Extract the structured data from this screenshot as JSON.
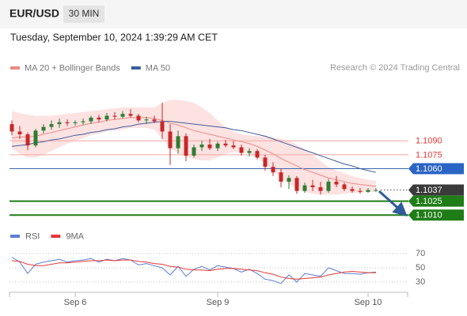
{
  "header": {
    "symbol": "EUR/USD",
    "timeframe": "30 MIN",
    "timestamp": "Tuesday, September 10, 2024 1:39:29 AM CET"
  },
  "chart_data": [
    {
      "type": "candlestick",
      "credit": "Research © 2024 Trading Central",
      "ylim": [
        1.1,
        1.116
      ],
      "up_color": "#2e7d32",
      "down_color": "#c62828",
      "open": [
        1.1108,
        1.11,
        1.1097,
        1.1085,
        1.1101,
        1.1105,
        1.1108,
        1.111,
        1.1109,
        1.111,
        1.1111,
        1.1115,
        1.1113,
        1.1117,
        1.1116,
        1.1119,
        1.1117,
        1.1112,
        1.1113,
        1.1111,
        1.11,
        1.1082,
        1.1095,
        1.1074,
        1.1083,
        1.1086,
        1.1082,
        1.1087,
        1.1085,
        1.1083,
        1.1077,
        1.1079,
        1.1072,
        1.1062,
        1.1056,
        1.1046,
        1.105,
        1.1036,
        1.1042,
        1.104,
        1.1036,
        1.1046,
        1.1043,
        1.1038,
        1.1036,
        1.1035,
        1.1037
      ],
      "high": [
        1.1112,
        1.1106,
        1.1099,
        1.1103,
        1.1108,
        1.1112,
        1.1114,
        1.1113,
        1.1112,
        1.1114,
        1.1117,
        1.1118,
        1.112,
        1.1121,
        1.1122,
        1.1124,
        1.1119,
        1.1116,
        1.1117,
        1.1131,
        1.1108,
        1.1101,
        1.1098,
        1.1086,
        1.109,
        1.1092,
        1.1089,
        1.1091,
        1.109,
        1.1086,
        1.1082,
        1.1081,
        1.1075,
        1.1067,
        1.106,
        1.1053,
        1.1052,
        1.1045,
        1.1048,
        1.1046,
        1.1049,
        1.1052,
        1.1045,
        1.1041,
        1.1039,
        1.1039,
        1.1039
      ],
      "low": [
        1.1096,
        1.1092,
        1.108,
        1.1083,
        1.1098,
        1.1102,
        1.1104,
        1.1106,
        1.1106,
        1.1107,
        1.1108,
        1.111,
        1.1111,
        1.1113,
        1.1114,
        1.1115,
        1.111,
        1.1108,
        1.1109,
        1.1092,
        1.1064,
        1.1076,
        1.1068,
        1.1072,
        1.1079,
        1.108,
        1.1079,
        1.1083,
        1.1081,
        1.1074,
        1.1073,
        1.107,
        1.1058,
        1.1052,
        1.104,
        1.1038,
        1.1033,
        1.1034,
        1.1036,
        1.1032,
        1.1034,
        1.104,
        1.1036,
        1.1034,
        1.1033,
        1.1034,
        1.1035
      ],
      "close": [
        1.11,
        1.1097,
        1.1085,
        1.1101,
        1.1105,
        1.1108,
        1.111,
        1.1109,
        1.111,
        1.1111,
        1.1115,
        1.1113,
        1.1117,
        1.1116,
        1.1119,
        1.1117,
        1.1112,
        1.1113,
        1.1111,
        1.11,
        1.1082,
        1.1095,
        1.1074,
        1.1083,
        1.1086,
        1.1082,
        1.1087,
        1.1085,
        1.1083,
        1.1077,
        1.1079,
        1.1072,
        1.1062,
        1.1056,
        1.1046,
        1.105,
        1.1036,
        1.1042,
        1.104,
        1.1036,
        1.1046,
        1.1043,
        1.1038,
        1.1036,
        1.1035,
        1.1037,
        1.1037
      ],
      "lines": [
        {
          "name": "MA 20 + Bollinger Bands",
          "color": "#ea8a83",
          "band_color": "#fde2e2",
          "values": [
            1.1093,
            1.1094,
            1.1094,
            1.1095,
            1.1097,
            1.1099,
            1.1101,
            1.1103,
            1.1105,
            1.1107,
            1.1109,
            1.111,
            1.1112,
            1.1113,
            1.1114,
            1.1115,
            1.1115,
            1.1115,
            1.1114,
            1.1112,
            1.1109,
            1.1107,
            1.1104,
            1.1101,
            1.1099,
            1.1097,
            1.1095,
            1.1093,
            1.1091,
            1.1089,
            1.1087,
            1.1084,
            1.108,
            1.1076,
            1.1071,
            1.1067,
            1.1063,
            1.1059,
            1.1056,
            1.1053,
            1.105,
            1.1048,
            1.1046,
            1.1044,
            1.1043,
            1.1042,
            1.1041
          ],
          "upper": [
            1.1122,
            1.112,
            1.1118,
            1.1117,
            1.1117,
            1.1117,
            1.1118,
            1.1119,
            1.112,
            1.1121,
            1.1122,
            1.1123,
            1.1124,
            1.1125,
            1.1126,
            1.1126,
            1.1126,
            1.1126,
            1.1126,
            1.1131,
            1.1134,
            1.1134,
            1.1133,
            1.1131,
            1.1126,
            1.112,
            1.1112,
            1.1105,
            1.11,
            1.1097,
            1.1096,
            1.1095,
            1.1095,
            1.1094,
            1.1092,
            1.109,
            1.1086,
            1.1081,
            1.1075,
            1.1068,
            1.1062,
            1.1058,
            1.1055,
            1.1052,
            1.105,
            1.1048,
            1.1047
          ],
          "lower": [
            1.1082,
            1.1076,
            1.1072,
            1.1072,
            1.1075,
            1.1079,
            1.1083,
            1.1087,
            1.109,
            1.1093,
            1.1096,
            1.1098,
            1.11,
            1.1101,
            1.1102,
            1.1104,
            1.1104,
            1.1104,
            1.1102,
            1.1092,
            1.1082,
            1.1077,
            1.1073,
            1.107,
            1.1069,
            1.1069,
            1.1072,
            1.1076,
            1.1078,
            1.1078,
            1.1076,
            1.1072,
            1.1065,
            1.1058,
            1.105,
            1.1043,
            1.1038,
            1.1035,
            1.1033,
            1.1032,
            1.1032,
            1.1032,
            1.1033,
            1.1034,
            1.1034,
            1.1035,
            1.1035
          ]
        },
        {
          "name": "MA 50",
          "color": "#3c5d9c",
          "values": [
            1.1084,
            1.1085,
            1.1086,
            1.1088,
            1.1089,
            1.1091,
            1.1092,
            1.1094,
            1.1096,
            1.1097,
            1.1099,
            1.11,
            1.1102,
            1.1103,
            1.1105,
            1.1106,
            1.1108,
            1.1109,
            1.111,
            1.1111,
            1.1111,
            1.111,
            1.1109,
            1.1108,
            1.1107,
            1.1106,
            1.1105,
            1.1104,
            1.1102,
            1.1101,
            1.1099,
            1.1097,
            1.1095,
            1.1092,
            1.1089,
            1.1086,
            1.1083,
            1.108,
            1.1077,
            1.1074,
            1.1071,
            1.1068,
            1.1065,
            1.1063,
            1.106,
            1.1058,
            1.1056
          ]
        }
      ],
      "levels": [
        {
          "value": 1.109,
          "label": "1.1090",
          "color": "#e53935",
          "line_color": "#f4a6a0",
          "line_width": 1,
          "boxed": false,
          "line": "solid"
        },
        {
          "value": 1.1075,
          "label": "1.1075",
          "color": "#e53935",
          "line_color": "#f4a6a0",
          "line_width": 1,
          "boxed": false,
          "line": "solid"
        },
        {
          "value": 1.106,
          "label": "1.1060",
          "color": "#2a64c5",
          "line_color": "#3a66b0",
          "line_width": 1,
          "boxed": true,
          "line": "solid"
        },
        {
          "value": 1.1037,
          "label": "1.1037",
          "color": "#3a3a3a",
          "line_color": "#555555",
          "line_width": 1,
          "boxed": true,
          "line": "dotted"
        },
        {
          "value": 1.1025,
          "label": "1.1025",
          "color": "#1e7d16",
          "line_color": "#1e7d16",
          "line_width": 2,
          "boxed": true,
          "line": "solid"
        },
        {
          "value": 1.101,
          "label": "1.1010",
          "color": "#1e7d16",
          "line_color": "#1e7d16",
          "line_width": 2,
          "boxed": true,
          "line": "solid"
        }
      ]
    },
    {
      "type": "line",
      "ylim": [
        15,
        88
      ],
      "yticks": [
        30,
        50,
        70
      ],
      "grid": true,
      "categories": [
        null,
        null,
        null,
        null,
        null,
        null,
        null,
        null,
        "Sep 6",
        null,
        null,
        null,
        null,
        null,
        null,
        null,
        null,
        null,
        null,
        null,
        null,
        null,
        null,
        null,
        null,
        null,
        "Sep 9",
        null,
        null,
        null,
        null,
        null,
        null,
        null,
        null,
        null,
        null,
        null,
        null,
        null,
        null,
        null,
        null,
        null,
        null,
        "Sep 10",
        null
      ],
      "series": [
        {
          "name": "RSI",
          "color": "#5b7fd6",
          "values": [
            65,
            58,
            42,
            55,
            58,
            60,
            62,
            58,
            60,
            61,
            63,
            58,
            62,
            60,
            63,
            61,
            54,
            56,
            53,
            50,
            40,
            52,
            38,
            48,
            52,
            47,
            53,
            51,
            49,
            44,
            48,
            42,
            34,
            32,
            28,
            40,
            30,
            42,
            40,
            38,
            50,
            46,
            42,
            42,
            41,
            43,
            44
          ]
        },
        {
          "name": "9MA",
          "color": "#e53935",
          "values": [
            60,
            59,
            55,
            53,
            53,
            55,
            57,
            57,
            58,
            59,
            60,
            60,
            61,
            60,
            61,
            61,
            59,
            58,
            56,
            55,
            52,
            51,
            48,
            47,
            47,
            46,
            48,
            49,
            49,
            48,
            47,
            46,
            43,
            41,
            37,
            35,
            34,
            35,
            36,
            37,
            40,
            42,
            44,
            45,
            44,
            43,
            43
          ]
        }
      ]
    }
  ]
}
